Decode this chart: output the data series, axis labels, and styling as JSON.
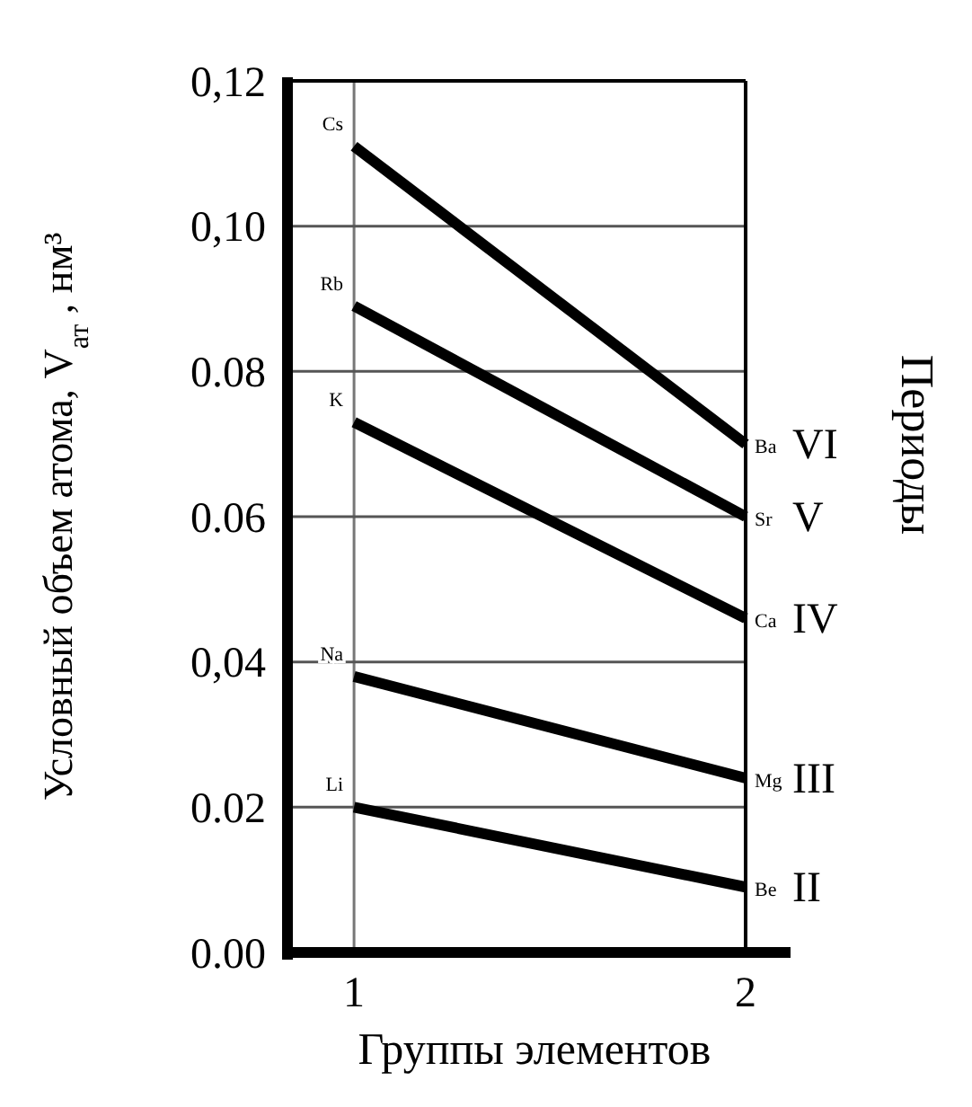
{
  "chart_data": {
    "type": "line",
    "xlabel": "Группы элементов",
    "ylabel": "Условный объем атома, V$_{ат}$ , нм³",
    "y2label": "Периоды",
    "x": [
      1,
      2
    ],
    "xlim": [
      0.83,
      2
    ],
    "xticks": [
      1,
      2
    ],
    "ylim": [
      0,
      0.12
    ],
    "yticks": [
      {
        "value": 0,
        "label": "0.00"
      },
      {
        "value": 0.02,
        "label": "0.02"
      },
      {
        "value": 0.04,
        "label": "0,04"
      },
      {
        "value": 0.06,
        "label": "0.06"
      },
      {
        "value": 0.08,
        "label": "0.08"
      },
      {
        "value": 0.1,
        "label": "0,10"
      },
      {
        "value": 0.12,
        "label": "0,12"
      }
    ],
    "grid": "y",
    "ref_lines": [
      {
        "axis": "x",
        "value": 1
      }
    ],
    "marker": "none",
    "line_style": "solid",
    "series": [
      {
        "name": "VI",
        "color": "#000000",
        "values": [
          0.111,
          0.07
        ],
        "value_labels": [
          "Cs",
          "Ba"
        ]
      },
      {
        "name": "V",
        "color": "#000000",
        "values": [
          0.089,
          0.06
        ],
        "value_labels": [
          "Rb",
          "Sr"
        ]
      },
      {
        "name": "IV",
        "color": "#000000",
        "values": [
          0.073,
          0.046
        ],
        "value_labels": [
          "K",
          "Ca"
        ]
      },
      {
        "name": "III",
        "color": "#000000",
        "values": [
          0.038,
          0.024
        ],
        "value_labels": [
          "Na",
          "Mg"
        ]
      },
      {
        "name": "II",
        "color": "#000000",
        "values": [
          0.02,
          0.009
        ],
        "value_labels": [
          "Li",
          "Be"
        ]
      }
    ]
  }
}
